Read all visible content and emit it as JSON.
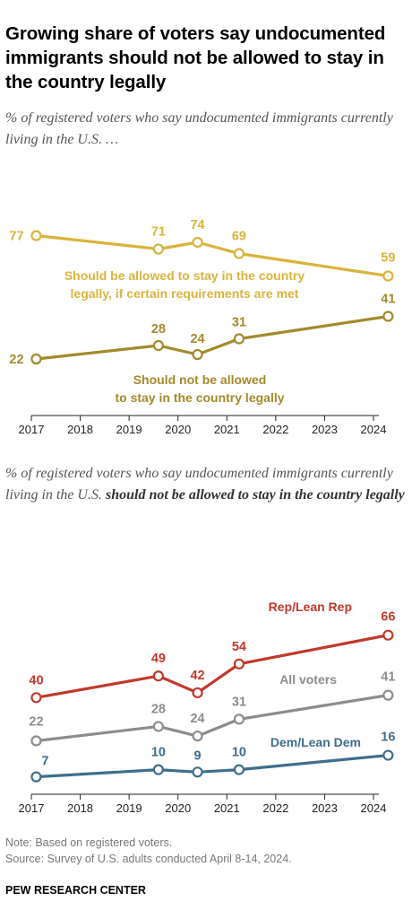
{
  "title": "Growing share of voters say undocumented immigrants should not be allowed to stay in the country legally",
  "notes": {
    "note": "Note: Based on registered voters.",
    "source": "Source: Survey of U.S. adults conducted April 8-14, 2024.",
    "brand": "PEW RESEARCH CENTER"
  },
  "colors": {
    "allowed": "#D9B43C",
    "not_allowed": "#A38A2B",
    "rep": "#C0392B",
    "all": "#8C8C8C",
    "dem": "#3E6E8C"
  },
  "chart_data": [
    {
      "type": "line",
      "subtitle": "% of registered voters who say undocumented immigrants currently living in the U.S. …",
      "x_ticks": [
        "2017",
        "2018",
        "2019",
        "2020",
        "2021",
        "2022",
        "2023",
        "2024"
      ],
      "xlim": [
        2017,
        2024.5
      ],
      "ylim": [
        20,
        80
      ],
      "grid": false,
      "series": [
        {
          "name": "Should be allowed to stay in the country legally, if certain requirements are met",
          "label_lines": [
            "Should be allowed to stay in the country",
            "legally, if certain requirements are met"
          ],
          "color": "#D9B43C",
          "x": [
            2017.1,
            2019.6,
            2020.4,
            2021.25,
            2024.3
          ],
          "values": [
            77,
            71,
            74,
            69,
            59
          ],
          "data_labels": [
            "77",
            "71",
            "74",
            "69",
            "59"
          ]
        },
        {
          "name": "Should not be allowed to stay in the country legally",
          "label_lines": [
            "Should not be allowed",
            "to stay in the country legally"
          ],
          "color": "#A38A2B",
          "x": [
            2017.1,
            2019.6,
            2020.4,
            2021.25,
            2024.3
          ],
          "values": [
            22,
            28,
            24,
            31,
            41
          ],
          "data_labels": [
            "22",
            "28",
            "24",
            "31",
            "41"
          ]
        }
      ]
    },
    {
      "type": "line",
      "subtitle_plain": "% of registered voters who say undocumented immigrants currently living in the U.S.",
      "subtitle_bold": "should not be allowed to stay in the country legally",
      "x_ticks": [
        "2017",
        "2018",
        "2019",
        "2020",
        "2021",
        "2022",
        "2023",
        "2024"
      ],
      "xlim": [
        2017,
        2024.5
      ],
      "ylim": [
        5,
        70
      ],
      "grid": false,
      "series": [
        {
          "name": "Rep/Lean Rep",
          "color": "#C0392B",
          "x": [
            2017.1,
            2019.6,
            2020.4,
            2021.25,
            2024.3
          ],
          "values": [
            40,
            49,
            42,
            54,
            66
          ],
          "data_labels": [
            "40",
            "49",
            "42",
            "54",
            "66"
          ]
        },
        {
          "name": "All voters",
          "color": "#8C8C8C",
          "x": [
            2017.1,
            2019.6,
            2020.4,
            2021.25,
            2024.3
          ],
          "values": [
            22,
            28,
            24,
            31,
            41
          ],
          "data_labels": [
            "22",
            "28",
            "24",
            "31",
            "41"
          ]
        },
        {
          "name": "Dem/Lean Dem",
          "color": "#3E6E8C",
          "x": [
            2017.1,
            2019.6,
            2020.4,
            2021.25,
            2024.3
          ],
          "values": [
            7,
            10,
            9,
            10,
            16
          ],
          "data_labels": [
            "7",
            "10",
            "9",
            "10",
            "16"
          ]
        }
      ]
    }
  ]
}
